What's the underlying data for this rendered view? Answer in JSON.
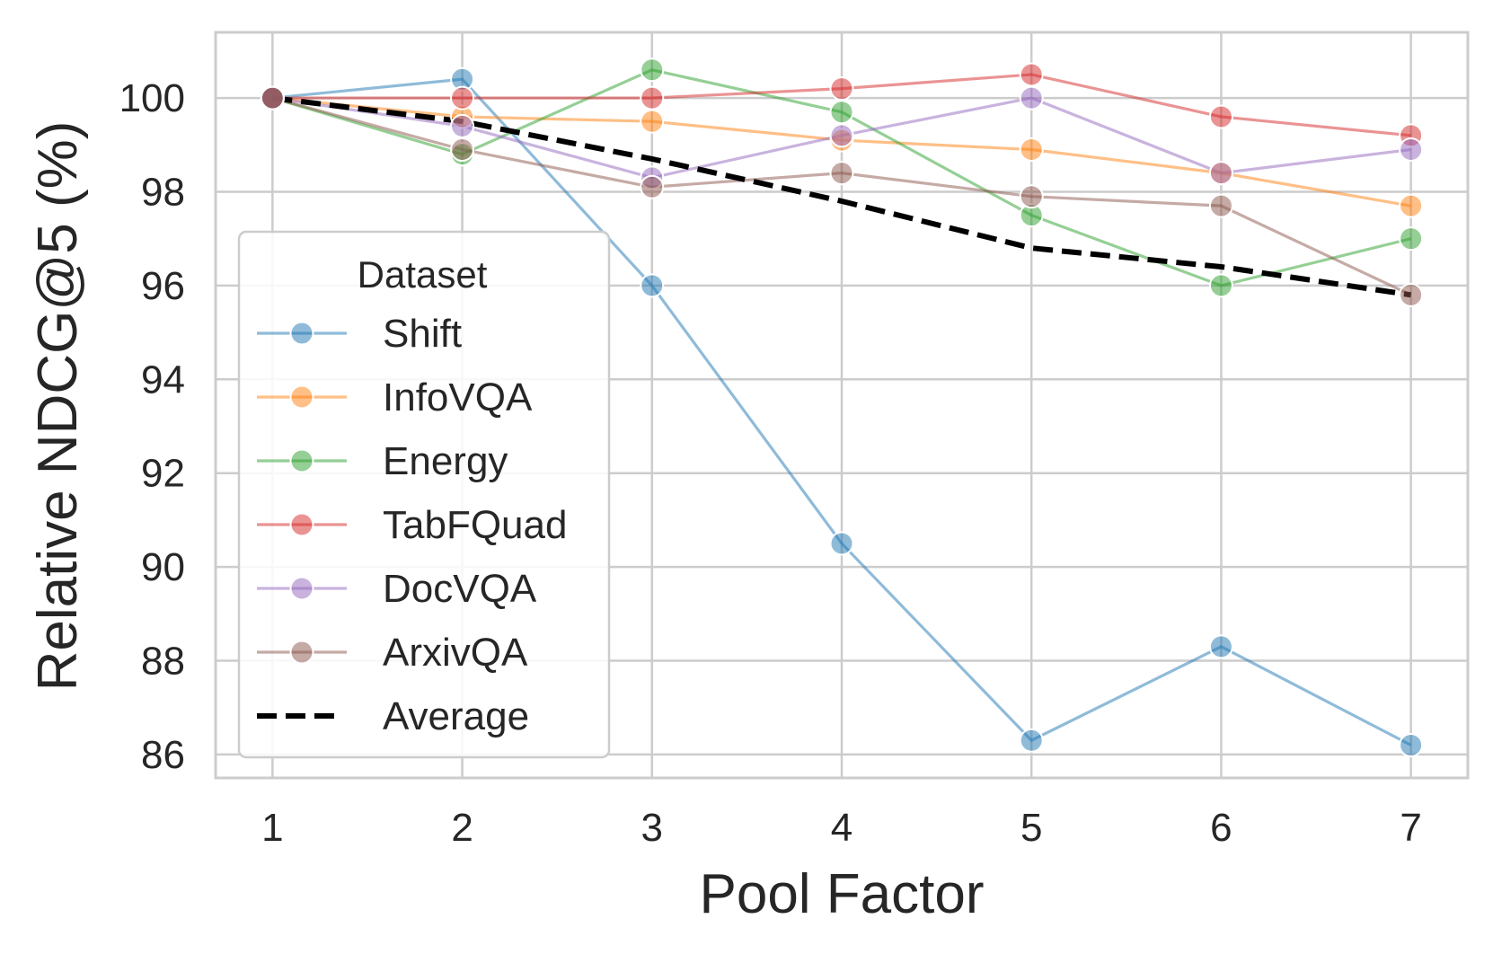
{
  "chart_data": {
    "type": "line",
    "title": "",
    "xlabel": "Pool Factor",
    "ylabel": "Relative NDCG@5 (%)",
    "x": [
      1,
      2,
      3,
      4,
      5,
      6,
      7
    ],
    "xlim": [
      0.7,
      7.3
    ],
    "ylim": [
      85.5,
      101.4
    ],
    "yticks": [
      86,
      88,
      90,
      92,
      94,
      96,
      98,
      100
    ],
    "grid": true,
    "legend": {
      "title": "Dataset",
      "position": "lower-left"
    },
    "series": [
      {
        "name": "Shift",
        "color": "#1f77b4",
        "values": [
          100,
          100.4,
          96.0,
          90.5,
          86.3,
          88.3,
          86.2
        ]
      },
      {
        "name": "InfoVQA",
        "color": "#ff7f0e",
        "values": [
          100,
          99.6,
          99.5,
          99.1,
          98.9,
          98.4,
          97.7
        ]
      },
      {
        "name": "Energy",
        "color": "#2ca02c",
        "values": [
          100,
          98.8,
          100.6,
          99.7,
          97.5,
          96.0,
          97.0
        ]
      },
      {
        "name": "TabFQuad",
        "color": "#d62728",
        "values": [
          100,
          100.0,
          100.0,
          100.2,
          100.5,
          99.6,
          99.2
        ]
      },
      {
        "name": "DocVQA",
        "color": "#9467bd",
        "values": [
          100,
          99.4,
          98.3,
          99.2,
          100.0,
          98.4,
          98.9
        ]
      },
      {
        "name": "ArxivQA",
        "color": "#8c564b",
        "values": [
          100,
          98.9,
          98.1,
          98.4,
          97.9,
          97.7,
          95.8
        ]
      },
      {
        "name": "Average",
        "color": "#000000",
        "dashed": true,
        "values": [
          100,
          99.5,
          98.7,
          97.8,
          96.8,
          96.4,
          95.8
        ]
      }
    ]
  }
}
